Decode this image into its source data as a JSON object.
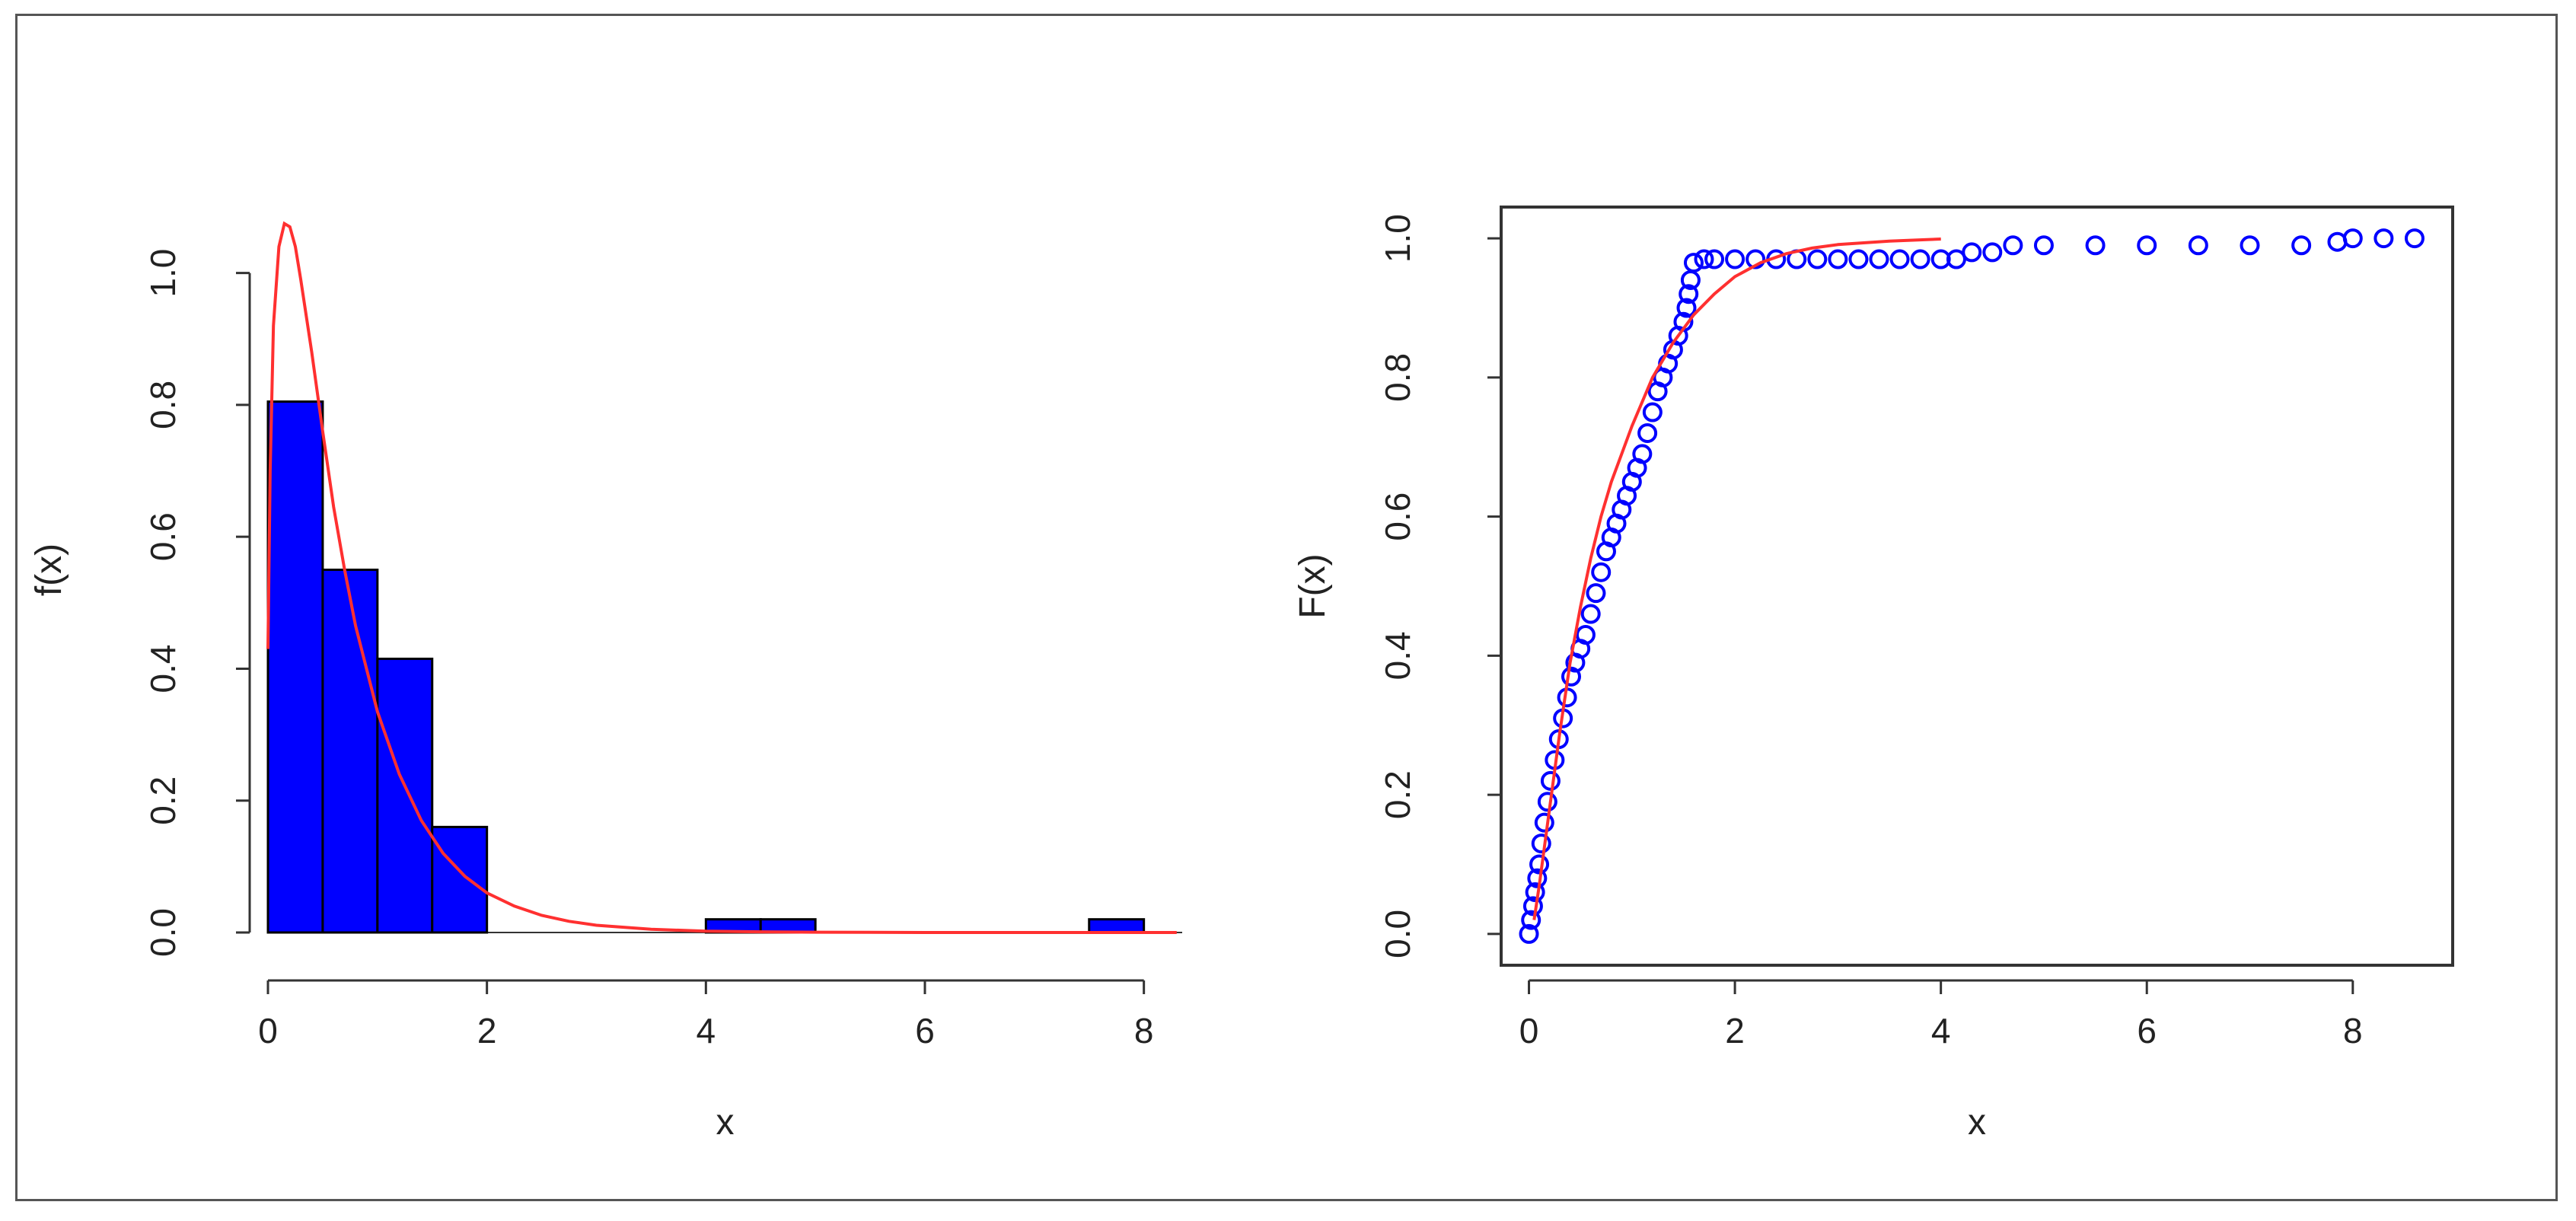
{
  "colors": {
    "bar_fill": "#0000ff",
    "bar_stroke": "#000000",
    "curve": "#ff3030",
    "points": "#0000ff",
    "axis": "#333333"
  },
  "chart_data": [
    {
      "type": "bar",
      "variant": "histogram",
      "xlabel": "x",
      "ylabel": "f(x)",
      "xlim": [
        0,
        8.35
      ],
      "ylim": [
        0,
        1.1
      ],
      "xticks": [
        "0",
        "2",
        "4",
        "6",
        "8"
      ],
      "yticks": [
        "0.0",
        "0.2",
        "0.4",
        "0.6",
        "0.8",
        "1.0"
      ],
      "box": false,
      "bins": [
        {
          "x0": 0.0,
          "x1": 0.5,
          "density": 0.805
        },
        {
          "x0": 0.5,
          "x1": 1.0,
          "density": 0.55
        },
        {
          "x0": 1.0,
          "x1": 1.5,
          "density": 0.415
        },
        {
          "x0": 1.5,
          "x1": 2.0,
          "density": 0.16
        },
        {
          "x0": 4.0,
          "x1": 4.5,
          "density": 0.02
        },
        {
          "x0": 4.5,
          "x1": 5.0,
          "density": 0.02
        },
        {
          "x0": 7.5,
          "x1": 8.0,
          "density": 0.02
        }
      ],
      "series": [
        {
          "type": "line",
          "x": [
            0.0,
            0.02,
            0.05,
            0.1,
            0.15,
            0.2,
            0.25,
            0.3,
            0.4,
            0.5,
            0.6,
            0.7,
            0.8,
            1.0,
            1.2,
            1.4,
            1.6,
            1.8,
            2.0,
            2.25,
            2.5,
            2.75,
            3.0,
            3.5,
            4.0,
            4.5,
            5.0,
            6.0,
            7.0,
            8.3
          ],
          "y": [
            0.43,
            0.7,
            0.92,
            1.04,
            1.075,
            1.07,
            1.04,
            0.99,
            0.88,
            0.76,
            0.645,
            0.55,
            0.465,
            0.335,
            0.24,
            0.17,
            0.12,
            0.085,
            0.06,
            0.04,
            0.026,
            0.017,
            0.011,
            0.005,
            0.002,
            0.001,
            0.0005,
            0.0,
            0.0,
            0.0
          ]
        }
      ]
    },
    {
      "type": "scatter",
      "xlabel": "x",
      "ylabel": "F(x)",
      "xlim": [
        -0.27,
        8.97
      ],
      "ylim": [
        -0.045,
        1.045
      ],
      "xticks": [
        "0",
        "2",
        "4",
        "6",
        "8"
      ],
      "yticks": [
        "0.0",
        "0.2",
        "0.4",
        "0.6",
        "0.8",
        "1.0"
      ],
      "box": true,
      "series": [
        {
          "type": "scatter",
          "marker": "open-circle",
          "x": [
            0.0,
            0.02,
            0.04,
            0.06,
            0.08,
            0.1,
            0.12,
            0.15,
            0.18,
            0.21,
            0.25,
            0.29,
            0.33,
            0.37,
            0.41,
            0.45,
            0.5,
            0.55,
            0.6,
            0.65,
            0.7,
            0.75,
            0.8,
            0.85,
            0.9,
            0.95,
            1.0,
            1.05,
            1.1,
            1.15,
            1.2,
            1.25,
            1.3,
            1.35,
            1.4,
            1.45,
            1.5,
            1.53,
            1.55,
            1.57,
            1.6,
            1.7,
            1.8,
            2.0,
            2.2,
            2.4,
            2.6,
            2.8,
            3.0,
            3.2,
            3.4,
            3.6,
            3.8,
            4.0,
            4.15,
            4.3,
            4.5,
            4.7,
            5.0,
            5.5,
            6.0,
            6.5,
            7.0,
            7.5,
            7.85,
            8.0,
            8.3,
            8.6
          ],
          "y": [
            0.0,
            0.02,
            0.04,
            0.06,
            0.08,
            0.1,
            0.13,
            0.16,
            0.19,
            0.22,
            0.25,
            0.28,
            0.31,
            0.34,
            0.37,
            0.39,
            0.41,
            0.43,
            0.46,
            0.49,
            0.52,
            0.55,
            0.57,
            0.59,
            0.61,
            0.63,
            0.65,
            0.67,
            0.69,
            0.72,
            0.75,
            0.78,
            0.8,
            0.82,
            0.84,
            0.86,
            0.88,
            0.9,
            0.92,
            0.94,
            0.965,
            0.97,
            0.97,
            0.97,
            0.97,
            0.97,
            0.97,
            0.97,
            0.97,
            0.97,
            0.97,
            0.97,
            0.97,
            0.97,
            0.97,
            0.98,
            0.98,
            0.99,
            0.99,
            0.99,
            0.99,
            0.99,
            0.99,
            0.99,
            0.995,
            1.0,
            1.0,
            1.0
          ]
        },
        {
          "type": "line",
          "x": [
            0.05,
            0.1,
            0.2,
            0.3,
            0.4,
            0.5,
            0.6,
            0.7,
            0.8,
            0.9,
            1.0,
            1.2,
            1.4,
            1.6,
            1.8,
            2.0,
            2.25,
            2.5,
            2.75,
            3.0,
            3.5,
            4.0
          ],
          "y": [
            0.02,
            0.07,
            0.18,
            0.29,
            0.39,
            0.47,
            0.54,
            0.6,
            0.65,
            0.69,
            0.73,
            0.8,
            0.85,
            0.89,
            0.92,
            0.945,
            0.965,
            0.978,
            0.986,
            0.991,
            0.996,
            0.999
          ]
        }
      ]
    }
  ]
}
